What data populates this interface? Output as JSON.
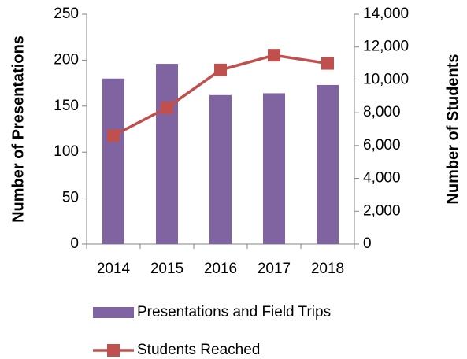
{
  "chart_data": {
    "type": "bar",
    "categories": [
      "2014",
      "2015",
      "2016",
      "2017",
      "2018"
    ],
    "series": [
      {
        "name": "Presentations and Field Trips",
        "type": "bar",
        "color": "#8064a2",
        "values": [
          180,
          196,
          162,
          164,
          173
        ]
      },
      {
        "name": "Students Reached",
        "type": "line",
        "axis": "y2",
        "color": "#c0504d",
        "values": [
          6600,
          8300,
          10600,
          11500,
          11000
        ]
      }
    ],
    "ylabel": "Number of Presentations",
    "y2label": "Number of Students",
    "ylim": [
      0,
      250
    ],
    "yticks": [
      0,
      50,
      100,
      150,
      200,
      250
    ],
    "y2lim": [
      0,
      14000
    ],
    "y2ticks": [
      0,
      {
        "value": 2000,
        "label": "2,000"
      },
      {
        "value": 4000,
        "label": "4,000"
      },
      {
        "value": 6000,
        "label": "6,000"
      },
      {
        "value": 8000,
        "label": "8,000"
      },
      {
        "value": 10000,
        "label": "10,000"
      },
      {
        "value": 12000,
        "label": "12,000"
      },
      {
        "value": 14000,
        "label": "14,000"
      }
    ],
    "grid": false,
    "legend": "bottom"
  }
}
